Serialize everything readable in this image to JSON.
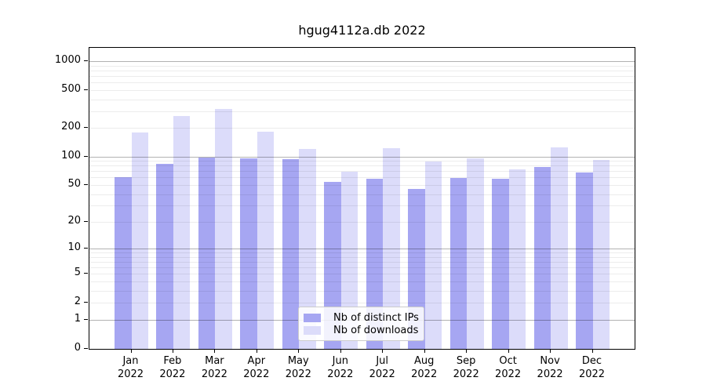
{
  "chart_data": {
    "type": "bar",
    "title": "hgug4112a.db 2022",
    "xlabel": "",
    "ylabel": "",
    "categories": [
      "Jan",
      "Feb",
      "Mar",
      "Apr",
      "May",
      "Jun",
      "Jul",
      "Aug",
      "Sep",
      "Oct",
      "Nov",
      "Dec"
    ],
    "x_tick_year": "2022",
    "series": [
      {
        "name": "Nb of distinct IPs",
        "color": "#a6a6f2",
        "values": [
          60,
          83,
          98,
          95,
          94,
          54,
          58,
          45,
          59,
          58,
          77,
          68
        ]
      },
      {
        "name": "Nb of downloads",
        "color": "#dcdcfa",
        "values": [
          178,
          268,
          315,
          184,
          121,
          69,
          122,
          89,
          96,
          74,
          126,
          93
        ]
      }
    ],
    "yscale": "log10(value+1)",
    "yticks": [
      1000,
      500,
      200,
      100,
      50,
      20,
      10,
      5,
      2,
      1,
      0
    ],
    "ylim": [
      0,
      1380
    ],
    "grid": "horizontal, minor light / major dark, drawn over bars",
    "legend_position": "lower center",
    "colors": {
      "minor_grid": "#ececec",
      "major_grid": "#aaaaaa",
      "axis": "#000000",
      "legend_border": "#cccccc",
      "background": "#ffffff"
    }
  }
}
